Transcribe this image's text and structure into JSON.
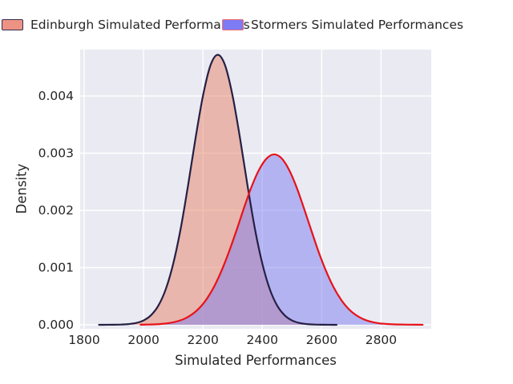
{
  "legend": {
    "items": [
      {
        "label": "Edinburgh Simulated Performances",
        "fill": "#ed9383",
        "border": "#352e52"
      },
      {
        "label": "Stormers Simulated Performances",
        "fill": "#7d7cf4",
        "border": "#f06a6a"
      }
    ]
  },
  "chart_data": {
    "type": "area",
    "subtype": "kde-density",
    "title": "",
    "xlabel": "Simulated Performances",
    "ylabel": "Density",
    "xlim": [
      1786.5,
      2968.9
    ],
    "ylim": [
      -7e-05,
      0.004811
    ],
    "x_ticks": [
      1800,
      2000,
      2200,
      2400,
      2600,
      2800
    ],
    "y_ticks": [
      0.0,
      0.001,
      0.002,
      0.003,
      0.004
    ],
    "y_tick_labels": [
      "0.000",
      "0.001",
      "0.002",
      "0.003",
      "0.004"
    ],
    "grid": true,
    "legend_position": "top",
    "axes_background": "#eaeaf2",
    "grid_color": "#ffffff",
    "series": [
      {
        "name": "Edinburgh Simulated Performances",
        "line_color": "#262045",
        "fill_color": "#e68266",
        "fill_opacity": 0.5,
        "peak_x": 2250,
        "peak_density": 0.00472,
        "x": [
          1850,
          1875,
          1900,
          1925,
          1950,
          1975,
          2000,
          2025,
          2050,
          2075,
          2100,
          2125,
          2150,
          2175,
          2200,
          2225,
          2250,
          2275,
          2300,
          2325,
          2350,
          2375,
          2400,
          2425,
          2450,
          2475,
          2500,
          2525,
          2550,
          2575,
          2600,
          2625,
          2650
        ],
        "density": [
          2e-07,
          5e-07,
          1.4e-06,
          4.4e-06,
          1.24e-05,
          3.19e-05,
          7.6e-05,
          0.000167,
          0.000336,
          0.000625,
          0.00107,
          0.00168,
          0.00244,
          0.00326,
          0.004,
          0.00453,
          0.00472,
          0.00453,
          0.004,
          0.00326,
          0.00244,
          0.00168,
          0.00107,
          0.000625,
          0.000336,
          0.000167,
          7.6e-05,
          3.19e-05,
          1.24e-05,
          4.4e-06,
          1.4e-06,
          5e-07,
          2e-07
        ]
      },
      {
        "name": "Stormers Simulated Performances",
        "line_color": "#e81219",
        "fill_color": "#7c7cf0",
        "fill_opacity": 0.5,
        "peak_x": 2440,
        "peak_density": 0.00298,
        "x": [
          1990,
          2015,
          2040,
          2065,
          2090,
          2115,
          2140,
          2165,
          2190,
          2215,
          2240,
          2265,
          2290,
          2315,
          2340,
          2365,
          2390,
          2415,
          2440,
          2465,
          2490,
          2515,
          2540,
          2565,
          2590,
          2615,
          2640,
          2665,
          2690,
          2715,
          2740,
          2765,
          2790,
          2815,
          2840,
          2865,
          2890,
          2915,
          2940
        ],
        "density": [
          1.8e-06,
          4e-06,
          8.6e-06,
          1.75e-05,
          3.4e-05,
          6.29e-05,
          0.000111,
          0.000188,
          0.000304,
          0.000469,
          0.000691,
          0.000974,
          0.00131,
          0.00168,
          0.00207,
          0.00243,
          0.00272,
          0.00291,
          0.00298,
          0.00291,
          0.00271,
          0.00241,
          0.00204,
          0.00165,
          0.00127,
          0.000936,
          0.000657,
          0.00044,
          0.00028,
          0.000171,
          9.92e-05,
          5.49e-05,
          2.9e-05,
          1.6e-05,
          9e-06,
          5e-06,
          2.8e-06,
          1.5e-06,
          7e-07
        ]
      }
    ]
  }
}
